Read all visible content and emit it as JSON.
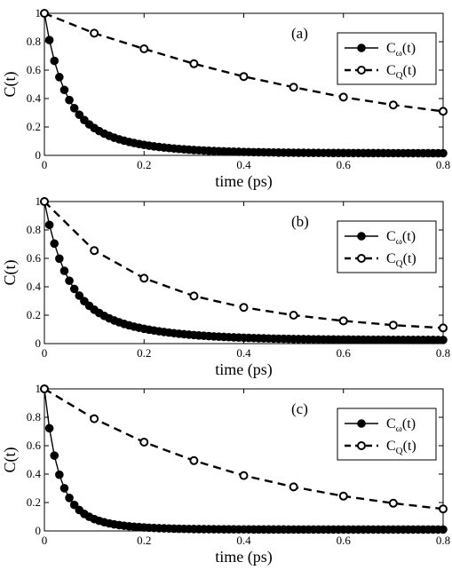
{
  "chart_data": [
    {
      "type": "line",
      "panel_label": "(a)",
      "xlabel": "time (ps)",
      "ylabel": "C(t)",
      "xlim": [
        0,
        0.8
      ],
      "ylim": [
        0,
        1
      ],
      "xticks": [
        "0",
        "0.2",
        "0.4",
        "0.6",
        "0.8"
      ],
      "yticks": [
        "0",
        "0.2",
        "0.4",
        "0.6",
        "0.8",
        "1"
      ],
      "legend_position": "top-right",
      "series": [
        {
          "label_base": "C",
          "label_sub": "ω",
          "label_suffix": "(t)",
          "style": "solid-filled",
          "tau1": 0.035,
          "tau2": 0.11,
          "w": 0.35,
          "c": 0.015,
          "x": [
            0,
            0.01,
            0.02,
            0.03,
            0.04,
            0.05,
            0.06,
            0.07,
            0.08,
            0.09,
            0.1,
            0.11,
            0.12,
            0.13,
            0.14,
            0.15,
            0.16,
            0.17,
            0.18,
            0.19,
            0.2,
            0.21,
            0.22,
            0.23,
            0.24,
            0.25,
            0.26,
            0.27,
            0.28,
            0.29,
            0.3,
            0.31,
            0.32,
            0.33,
            0.34,
            0.35,
            0.36,
            0.37,
            0.38,
            0.39,
            0.4,
            0.41,
            0.42,
            0.43,
            0.44,
            0.45,
            0.46,
            0.47,
            0.48,
            0.49,
            0.5,
            0.51,
            0.52,
            0.53,
            0.54,
            0.55,
            0.56,
            0.57,
            0.58,
            0.59,
            0.6,
            0.61,
            0.62,
            0.63,
            0.64,
            0.65,
            0.66,
            0.67,
            0.68,
            0.69,
            0.7,
            0.71,
            0.72,
            0.73,
            0.74,
            0.75,
            0.76,
            0.77,
            0.78,
            0.79,
            0.8
          ]
        },
        {
          "label_base": "C",
          "label_sub": "Q",
          "label_suffix": "(t)",
          "style": "dashed-open",
          "x": [
            0,
            0.1,
            0.2,
            0.3,
            0.4,
            0.5,
            0.6,
            0.7,
            0.8
          ],
          "y": [
            1.0,
            0.86,
            0.75,
            0.645,
            0.555,
            0.48,
            0.41,
            0.355,
            0.31
          ]
        }
      ]
    },
    {
      "type": "line",
      "panel_label": "(b)",
      "xlabel": "time (ps)",
      "ylabel": "C(t)",
      "xlim": [
        0,
        0.8
      ],
      "ylim": [
        0,
        1
      ],
      "xticks": [
        "0",
        "0.2",
        "0.4",
        "0.6",
        "0.8"
      ],
      "yticks": [
        "0",
        "0.2",
        "0.4",
        "0.6",
        "0.8",
        "1"
      ],
      "legend_position": "top-right",
      "series": [
        {
          "label_base": "C",
          "label_sub": "ω",
          "label_suffix": "(t)",
          "style": "solid-filled",
          "tau1": 0.04,
          "tau2": 0.13,
          "w": 0.35,
          "c": 0.025,
          "x": [
            0,
            0.01,
            0.02,
            0.03,
            0.04,
            0.05,
            0.06,
            0.07,
            0.08,
            0.09,
            0.1,
            0.11,
            0.12,
            0.13,
            0.14,
            0.15,
            0.16,
            0.17,
            0.18,
            0.19,
            0.2,
            0.21,
            0.22,
            0.23,
            0.24,
            0.25,
            0.26,
            0.27,
            0.28,
            0.29,
            0.3,
            0.31,
            0.32,
            0.33,
            0.34,
            0.35,
            0.36,
            0.37,
            0.38,
            0.39,
            0.4,
            0.41,
            0.42,
            0.43,
            0.44,
            0.45,
            0.46,
            0.47,
            0.48,
            0.49,
            0.5,
            0.51,
            0.52,
            0.53,
            0.54,
            0.55,
            0.56,
            0.57,
            0.58,
            0.59,
            0.6,
            0.61,
            0.62,
            0.63,
            0.64,
            0.65,
            0.66,
            0.67,
            0.68,
            0.69,
            0.7,
            0.71,
            0.72,
            0.73,
            0.74,
            0.75,
            0.76,
            0.77,
            0.78,
            0.79,
            0.8
          ]
        },
        {
          "label_base": "C",
          "label_sub": "Q",
          "label_suffix": "(t)",
          "style": "dashed-open",
          "x": [
            0,
            0.1,
            0.2,
            0.3,
            0.4,
            0.5,
            0.6,
            0.7,
            0.8
          ],
          "y": [
            1.0,
            0.655,
            0.46,
            0.335,
            0.255,
            0.2,
            0.16,
            0.13,
            0.11
          ]
        }
      ]
    },
    {
      "type": "line",
      "panel_label": "(c)",
      "xlabel": "time (ps)",
      "ylabel": "C(t)",
      "xlim": [
        0,
        0.8
      ],
      "ylim": [
        0,
        1
      ],
      "xticks": [
        "0",
        "0.2",
        "0.4",
        "0.6",
        "0.8"
      ],
      "yticks": [
        "0",
        "0.2",
        "0.4",
        "0.6",
        "0.8",
        "1"
      ],
      "legend_position": "top-right",
      "series": [
        {
          "label_base": "C",
          "label_sub": "ω",
          "label_suffix": "(t)",
          "style": "solid-filled",
          "tau1": 0.025,
          "tau2": 0.07,
          "w": 0.25,
          "c": 0.01,
          "x": [
            0,
            0.01,
            0.02,
            0.03,
            0.04,
            0.05,
            0.06,
            0.07,
            0.08,
            0.09,
            0.1,
            0.11,
            0.12,
            0.13,
            0.14,
            0.15,
            0.16,
            0.17,
            0.18,
            0.19,
            0.2,
            0.21,
            0.22,
            0.23,
            0.24,
            0.25,
            0.26,
            0.27,
            0.28,
            0.29,
            0.3,
            0.31,
            0.32,
            0.33,
            0.34,
            0.35,
            0.36,
            0.37,
            0.38,
            0.39,
            0.4,
            0.41,
            0.42,
            0.43,
            0.44,
            0.45,
            0.46,
            0.47,
            0.48,
            0.49,
            0.5,
            0.51,
            0.52,
            0.53,
            0.54,
            0.55,
            0.56,
            0.57,
            0.58,
            0.59,
            0.6,
            0.61,
            0.62,
            0.63,
            0.64,
            0.65,
            0.66,
            0.67,
            0.68,
            0.69,
            0.7,
            0.71,
            0.72,
            0.73,
            0.74,
            0.75,
            0.76,
            0.77,
            0.78,
            0.79,
            0.8
          ]
        },
        {
          "label_base": "C",
          "label_sub": "Q",
          "label_suffix": "(t)",
          "style": "dashed-open",
          "x": [
            0,
            0.1,
            0.2,
            0.3,
            0.4,
            0.5,
            0.6,
            0.7,
            0.8
          ],
          "y": [
            1.0,
            0.79,
            0.625,
            0.495,
            0.39,
            0.31,
            0.245,
            0.195,
            0.155
          ]
        }
      ]
    }
  ]
}
